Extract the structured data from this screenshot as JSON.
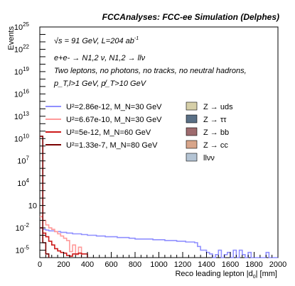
{
  "chart_data": {
    "type": "histogram",
    "title": "FCCAnalyses: FCC-ee Simulation (Delphes)",
    "ylabel": "Events",
    "xlabel": "Reco leading lepton |d",
    "xlabel_sub": "0",
    "xlabel_unit": "| [mm]",
    "xlim": [
      0,
      2000
    ],
    "ylim_exponent": [
      -6,
      25
    ],
    "log_y": true,
    "x_ticks": [
      "0",
      "200",
      "400",
      "600",
      "800",
      "1000",
      "1200",
      "1400",
      "1600",
      "1800",
      "2000"
    ],
    "y_ticks": [
      {
        "exp": 25,
        "label": "25"
      },
      {
        "exp": 22,
        "label": "22"
      },
      {
        "exp": 19,
        "label": "19"
      },
      {
        "exp": 16,
        "label": "16"
      },
      {
        "exp": 13,
        "label": "13"
      },
      {
        "exp": 10,
        "label": "10"
      },
      {
        "exp": 7,
        "label": "7"
      },
      {
        "exp": 4,
        "label": "4"
      },
      {
        "exp": 1,
        "label": "10"
      },
      {
        "exp": -2,
        "label": "-2"
      },
      {
        "exp": -5,
        "label": "-5"
      }
    ],
    "annotations": [
      "√s = 91 GeV, L=204 ab",
      "e+e- → N1,2 ν, N1,2 → llν",
      "Two leptons, no photons, no tracks, no neutral hadrons,",
      "p_T,l>1 GeV, p̸_T>10 GeV"
    ],
    "background_legend": [
      {
        "name": "Z → uds",
        "color": "#d6cfa8"
      },
      {
        "name": "Z → ττ",
        "color": "#5a7086"
      },
      {
        "name": "Z → bb",
        "color": "#9e6b6e"
      },
      {
        "name": "Z → cc",
        "color": "#d8a58a"
      },
      {
        "name": "llνν",
        "color": "#b4c4d4"
      }
    ],
    "bin_width": 25,
    "series": [
      {
        "name": "U²=2.86e-12, M_N=30 GeV",
        "color": "#8f8fff",
        "values": [
          -2.0,
          -2.2,
          -2.3,
          -2.4,
          -2.4,
          -2.5,
          -2.5,
          -2.6,
          -2.6,
          -2.7,
          -2.7,
          -2.8,
          -2.8,
          -2.8,
          -2.9,
          -2.9,
          -3.0,
          -3.0,
          -3.0,
          -3.1,
          -3.1,
          -3.1,
          -3.2,
          -3.2,
          -3.2,
          -3.2,
          -3.3,
          -3.3,
          -3.3,
          -3.3,
          -3.4,
          -3.4,
          -3.5,
          -3.5,
          -3.5,
          -3.5,
          -3.5,
          -3.5,
          -3.6,
          -3.6,
          -3.6,
          -3.6,
          -3.7,
          -3.7,
          -3.7,
          -3.7,
          -3.8,
          -3.8,
          -3.8,
          -3.9,
          -3.9,
          -3.9,
          -4.0,
          -4.5,
          -5.0,
          -5.0,
          -5.3,
          -5.5,
          -6.0,
          -5.6,
          -5.0,
          -6.0,
          -5.6,
          -5.3,
          -6.0,
          -5.0,
          -6.0,
          -5.0,
          -5.6,
          -6.0,
          -5.3,
          -6.0,
          -6.0,
          -6.0,
          -6.0,
          -6.0,
          -5.3,
          -6.0,
          -6.0,
          -6.0
        ]
      },
      {
        "name": "U²=6.67e-10, M_N=30 GeV",
        "color": "#ff9a9a",
        "values": [
          -0.5,
          -1.0,
          -1.6,
          -2.0,
          -2.2,
          -2.5,
          -2.8,
          -3.1,
          -3.4,
          -3.7,
          -5.2,
          -4.3,
          -5.6,
          -4.6
        ]
      },
      {
        "name": "U²=5e-12, M_N=60 GeV",
        "color": "#cc1a1a",
        "values": [
          -2.0,
          -2.7,
          -3.2,
          -3.8,
          -4.3,
          -4.8,
          -5.1,
          -5.3,
          -5.4,
          -5.7,
          -5.8,
          -5.5,
          -5.5,
          -5.4,
          -5.5,
          -5.5
        ]
      },
      {
        "name": "U²=1.33e-7, M_N=80 GeV",
        "color": "#7a0000",
        "values": [
          10.3,
          -4.0,
          -5.5
        ]
      }
    ]
  }
}
